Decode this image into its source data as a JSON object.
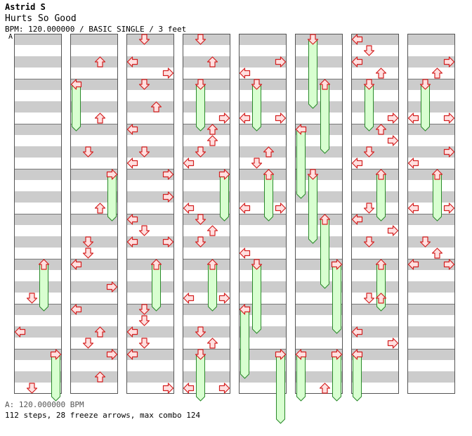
{
  "header": {
    "artist": "Astrid S",
    "title": "Hurts So Good",
    "info": "BPM: 120.000000 / BASIC SINGLE / 3 feet",
    "bpm_marker": "A"
  },
  "footer": {
    "bpm_legend": "A: 120.000000 BPM",
    "stats": "112 steps, 28 freeze arrows, max combo 124"
  },
  "colors": {
    "stripe_gray": "#cccccc",
    "arrow_fill": "#ffe0e0",
    "arrow_stroke": "#d42020",
    "freeze_fill": "#d8ffd0",
    "freeze_stroke": "#2a8a2a",
    "bpm_line": "#4a8fd8"
  },
  "chart_data": {
    "type": "step_chart",
    "columns": 8,
    "measures_per_column": 8,
    "steps": [
      {
        "c": 0,
        "m": 5,
        "b": 0,
        "d": "up",
        "f": 1.0
      },
      {
        "c": 0,
        "m": 5,
        "b": 3,
        "d": "down"
      },
      {
        "c": 0,
        "m": 6,
        "b": 2,
        "d": "left"
      },
      {
        "c": 0,
        "m": 7,
        "b": 0,
        "d": "right",
        "f": 1.0
      },
      {
        "c": 0,
        "m": 7,
        "b": 3,
        "d": "down"
      },
      {
        "c": 1,
        "m": 0,
        "b": 2,
        "d": "up"
      },
      {
        "c": 1,
        "m": 1,
        "b": 0,
        "d": "left",
        "f": 1.0
      },
      {
        "c": 1,
        "m": 1,
        "b": 3,
        "d": "up"
      },
      {
        "c": 1,
        "m": 2,
        "b": 2,
        "d": "down"
      },
      {
        "c": 1,
        "m": 3,
        "b": 0,
        "d": "right",
        "f": 1.0
      },
      {
        "c": 1,
        "m": 3,
        "b": 3,
        "d": "up"
      },
      {
        "c": 1,
        "m": 4,
        "b": 2,
        "d": "down"
      },
      {
        "c": 1,
        "m": 4,
        "b": 3,
        "d": "down"
      },
      {
        "c": 1,
        "m": 5,
        "b": 0,
        "d": "left"
      },
      {
        "c": 1,
        "m": 5,
        "b": 2,
        "d": "right"
      },
      {
        "c": 1,
        "m": 6,
        "b": 0,
        "d": "left"
      },
      {
        "c": 1,
        "m": 6,
        "b": 2,
        "d": "up"
      },
      {
        "c": 1,
        "m": 6,
        "b": 3,
        "d": "down"
      },
      {
        "c": 1,
        "m": 7,
        "b": 0,
        "d": "right"
      },
      {
        "c": 1,
        "m": 7,
        "b": 2,
        "d": "up"
      },
      {
        "c": 2,
        "m": 0,
        "b": 0,
        "d": "down"
      },
      {
        "c": 2,
        "m": 0,
        "b": 2,
        "d": "left"
      },
      {
        "c": 2,
        "m": 0,
        "b": 3,
        "d": "right"
      },
      {
        "c": 2,
        "m": 1,
        "b": 0,
        "d": "down"
      },
      {
        "c": 2,
        "m": 1,
        "b": 2,
        "d": "up"
      },
      {
        "c": 2,
        "m": 2,
        "b": 0,
        "d": "left"
      },
      {
        "c": 2,
        "m": 2,
        "b": 2,
        "d": "down"
      },
      {
        "c": 2,
        "m": 2,
        "b": 3,
        "d": "left"
      },
      {
        "c": 2,
        "m": 3,
        "b": 0,
        "d": "right"
      },
      {
        "c": 2,
        "m": 3,
        "b": 2,
        "d": "right"
      },
      {
        "c": 2,
        "m": 4,
        "b": 0,
        "d": "left"
      },
      {
        "c": 2,
        "m": 4,
        "b": 1,
        "d": "down"
      },
      {
        "c": 2,
        "m": 4,
        "b": 2,
        "d": "left"
      },
      {
        "c": 2,
        "m": 4,
        "b": 2.5,
        "d": "right"
      },
      {
        "c": 2,
        "m": 5,
        "b": 0,
        "d": "up",
        "f": 1.0
      },
      {
        "c": 2,
        "m": 6,
        "b": 0,
        "d": "down"
      },
      {
        "c": 2,
        "m": 6,
        "b": 1,
        "d": "down"
      },
      {
        "c": 2,
        "m": 6,
        "b": 2,
        "d": "left"
      },
      {
        "c": 2,
        "m": 6,
        "b": 3,
        "d": "down"
      },
      {
        "c": 2,
        "m": 7,
        "b": 0,
        "d": "left"
      },
      {
        "c": 2,
        "m": 7,
        "b": 3,
        "d": "right"
      },
      {
        "c": 3,
        "m": 0,
        "b": 0,
        "d": "down"
      },
      {
        "c": 3,
        "m": 0,
        "b": 2,
        "d": "up"
      },
      {
        "c": 3,
        "m": 1,
        "b": 0,
        "d": "down",
        "f": 1.0
      },
      {
        "c": 3,
        "m": 1,
        "b": 3,
        "d": "right"
      },
      {
        "c": 3,
        "m": 2,
        "b": 0,
        "d": "up"
      },
      {
        "c": 3,
        "m": 2,
        "b": 1,
        "d": "up"
      },
      {
        "c": 3,
        "m": 2,
        "b": 2,
        "d": "down"
      },
      {
        "c": 3,
        "m": 2,
        "b": 3,
        "d": "left"
      },
      {
        "c": 3,
        "m": 3,
        "b": 0,
        "d": "right",
        "f": 1.0
      },
      {
        "c": 3,
        "m": 3,
        "b": 3,
        "d": "left"
      },
      {
        "c": 3,
        "m": 4,
        "b": 0,
        "d": "down"
      },
      {
        "c": 3,
        "m": 4,
        "b": 1,
        "d": "up"
      },
      {
        "c": 3,
        "m": 4,
        "b": 2,
        "d": "down"
      },
      {
        "c": 3,
        "m": 5,
        "b": 0,
        "d": "up",
        "f": 1.0
      },
      {
        "c": 3,
        "m": 5,
        "b": 3,
        "d": "left"
      },
      {
        "c": 3,
        "m": 5,
        "b": 3.01,
        "d": "right"
      },
      {
        "c": 3,
        "m": 6,
        "b": 2,
        "d": "down"
      },
      {
        "c": 3,
        "m": 6,
        "b": 3,
        "d": "up"
      },
      {
        "c": 3,
        "m": 7,
        "b": 0,
        "d": "down",
        "f": 1.0
      },
      {
        "c": 3,
        "m": 7,
        "b": 3,
        "d": "left"
      },
      {
        "c": 3,
        "m": 7,
        "b": 3.01,
        "d": "right"
      },
      {
        "c": 4,
        "m": 0,
        "b": 2,
        "d": "right"
      },
      {
        "c": 4,
        "m": 0,
        "b": 3,
        "d": "left"
      },
      {
        "c": 4,
        "m": 1,
        "b": 0,
        "d": "down",
        "f": 1.0
      },
      {
        "c": 4,
        "m": 1,
        "b": 3,
        "d": "left"
      },
      {
        "c": 4,
        "m": 1,
        "b": 3.01,
        "d": "right"
      },
      {
        "c": 4,
        "m": 2,
        "b": 2,
        "d": "up"
      },
      {
        "c": 4,
        "m": 2,
        "b": 3,
        "d": "down"
      },
      {
        "c": 4,
        "m": 3,
        "b": 0,
        "d": "up",
        "f": 1.0
      },
      {
        "c": 4,
        "m": 3,
        "b": 3,
        "d": "left"
      },
      {
        "c": 4,
        "m": 3,
        "b": 3.01,
        "d": "right"
      },
      {
        "c": 4,
        "m": 4,
        "b": 3,
        "d": "left"
      },
      {
        "c": 4,
        "m": 5,
        "b": 0,
        "d": "down",
        "f": 1.5
      },
      {
        "c": 4,
        "m": 6,
        "b": 0,
        "d": "left",
        "f": 1.5
      },
      {
        "c": 4,
        "m": 7,
        "b": 0,
        "d": "right",
        "f": 1.5
      },
      {
        "c": 5,
        "m": 0,
        "b": 0,
        "d": "down",
        "f": 1.5
      },
      {
        "c": 5,
        "m": 1,
        "b": 0,
        "d": "up",
        "f": 1.5
      },
      {
        "c": 5,
        "m": 2,
        "b": 0,
        "d": "left",
        "f": 1.5
      },
      {
        "c": 5,
        "m": 3,
        "b": 0,
        "d": "down",
        "f": 1.5
      },
      {
        "c": 5,
        "m": 4,
        "b": 0,
        "d": "up",
        "f": 1.5
      },
      {
        "c": 5,
        "m": 5,
        "b": 0,
        "d": "right",
        "f": 1.5
      },
      {
        "c": 5,
        "m": 7,
        "b": 0,
        "d": "left",
        "f": 1.0
      },
      {
        "c": 5,
        "m": 7,
        "b": 0.01,
        "d": "right",
        "f": 1.0
      },
      {
        "c": 5,
        "m": 7,
        "b": 3,
        "d": "up"
      },
      {
        "c": 6,
        "m": 0,
        "b": 0,
        "d": "left"
      },
      {
        "c": 6,
        "m": 0,
        "b": 1,
        "d": "down"
      },
      {
        "c": 6,
        "m": 0,
        "b": 2,
        "d": "left"
      },
      {
        "c": 6,
        "m": 0,
        "b": 3,
        "d": "up"
      },
      {
        "c": 6,
        "m": 1,
        "b": 0,
        "d": "down",
        "f": 1.0
      },
      {
        "c": 6,
        "m": 1,
        "b": 3,
        "d": "right"
      },
      {
        "c": 6,
        "m": 2,
        "b": 0,
        "d": "up"
      },
      {
        "c": 6,
        "m": 2,
        "b": 1,
        "d": "right"
      },
      {
        "c": 6,
        "m": 2,
        "b": 2,
        "d": "down"
      },
      {
        "c": 6,
        "m": 2,
        "b": 3,
        "d": "left"
      },
      {
        "c": 6,
        "m": 3,
        "b": 0,
        "d": "up",
        "f": 1.0
      },
      {
        "c": 6,
        "m": 3,
        "b": 3,
        "d": "down"
      },
      {
        "c": 6,
        "m": 4,
        "b": 0,
        "d": "left"
      },
      {
        "c": 6,
        "m": 4,
        "b": 1,
        "d": "right"
      },
      {
        "c": 6,
        "m": 4,
        "b": 2,
        "d": "down"
      },
      {
        "c": 6,
        "m": 5,
        "b": 0,
        "d": "up",
        "f": 1.0
      },
      {
        "c": 6,
        "m": 5,
        "b": 3,
        "d": "down"
      },
      {
        "c": 6,
        "m": 5,
        "b": 3.01,
        "d": "up"
      },
      {
        "c": 6,
        "m": 6,
        "b": 2,
        "d": "left"
      },
      {
        "c": 6,
        "m": 6,
        "b": 3,
        "d": "right"
      },
      {
        "c": 6,
        "m": 7,
        "b": 0,
        "d": "left",
        "f": 1.0
      },
      {
        "c": 7,
        "m": 0,
        "b": 2,
        "d": "right"
      },
      {
        "c": 7,
        "m": 0,
        "b": 3,
        "d": "up"
      },
      {
        "c": 7,
        "m": 1,
        "b": 0,
        "d": "down",
        "f": 1.0
      },
      {
        "c": 7,
        "m": 1,
        "b": 3,
        "d": "left"
      },
      {
        "c": 7,
        "m": 1,
        "b": 3.01,
        "d": "right"
      },
      {
        "c": 7,
        "m": 2,
        "b": 2,
        "d": "right"
      },
      {
        "c": 7,
        "m": 2,
        "b": 3,
        "d": "left"
      },
      {
        "c": 7,
        "m": 3,
        "b": 0,
        "d": "up",
        "f": 1.0
      },
      {
        "c": 7,
        "m": 3,
        "b": 3,
        "d": "left"
      },
      {
        "c": 7,
        "m": 3,
        "b": 3.01,
        "d": "right"
      },
      {
        "c": 7,
        "m": 4,
        "b": 2,
        "d": "down"
      },
      {
        "c": 7,
        "m": 4,
        "b": 3,
        "d": "up"
      },
      {
        "c": 7,
        "m": 5,
        "b": 0,
        "d": "left"
      },
      {
        "c": 7,
        "m": 5,
        "b": 0.01,
        "d": "right"
      }
    ]
  }
}
